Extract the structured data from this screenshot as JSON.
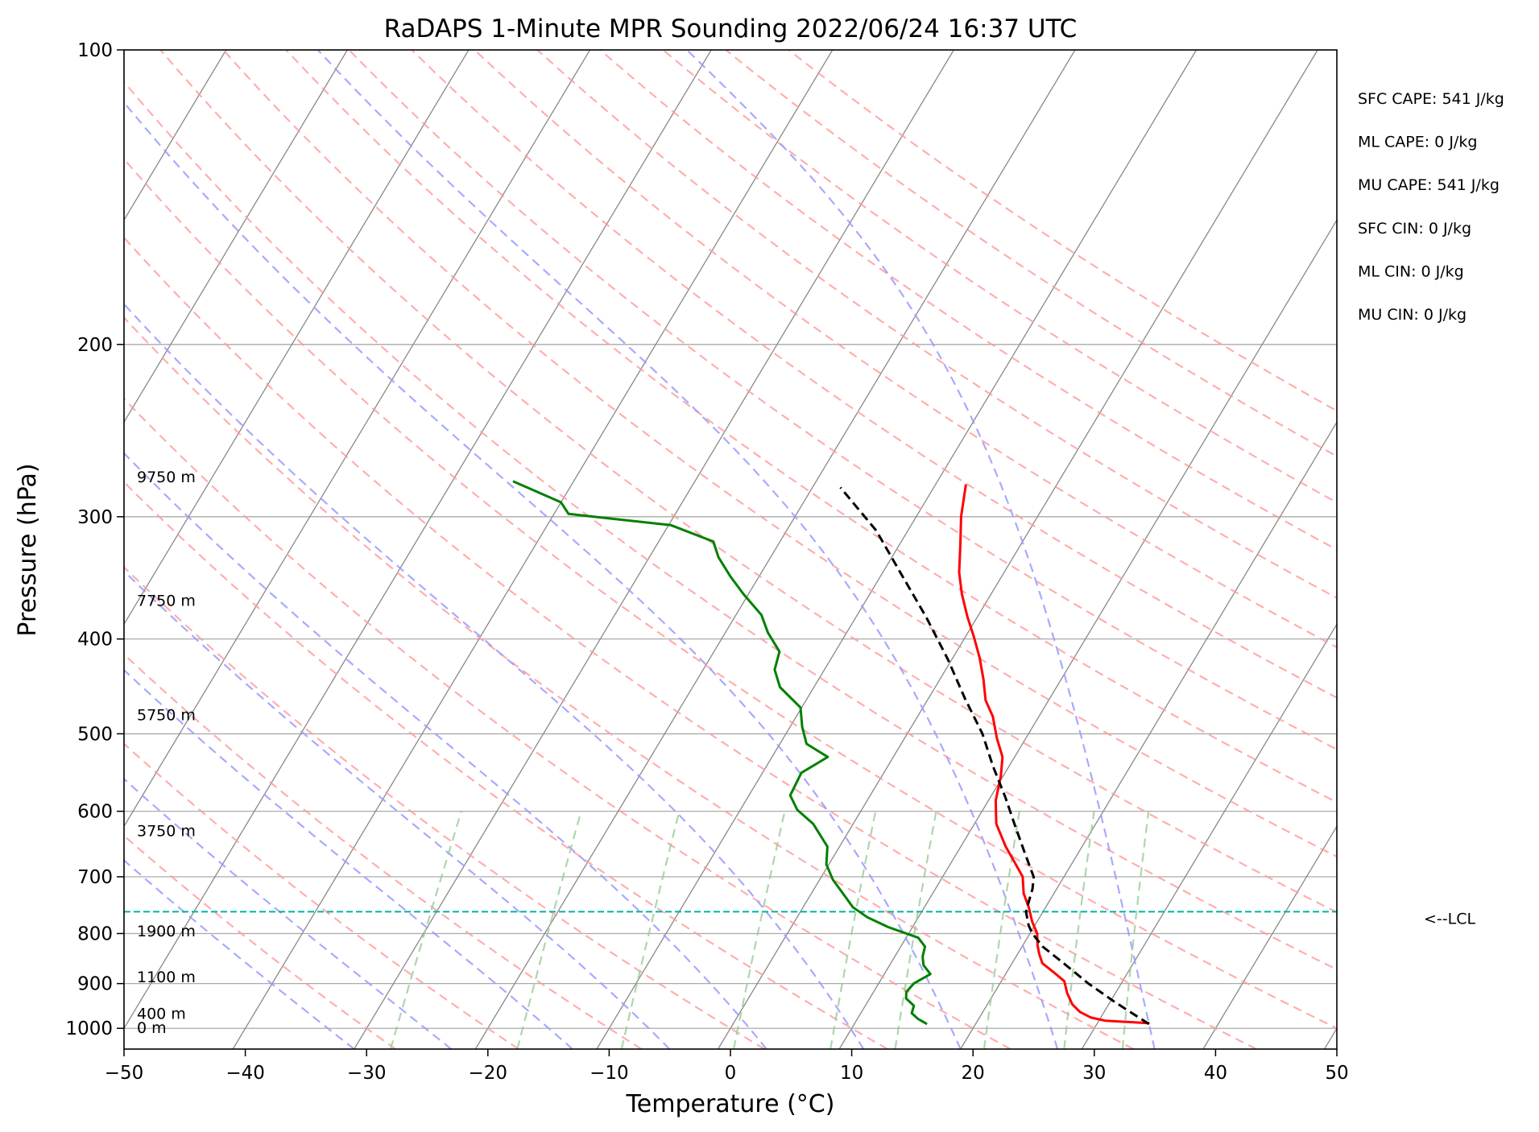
{
  "chart_data": {
    "type": "line",
    "title": "RaDAPS 1-Minute MPR Sounding 2022/06/24 16:37 UTC",
    "xlabel": "Temperature (°C)",
    "ylabel": "Pressure (hPa)",
    "xlim": [
      -50,
      50
    ],
    "ylim": [
      1050,
      100
    ],
    "y_scale": "log",
    "skew": "skew-T log-P",
    "x_ticks": [
      -50,
      -40,
      -30,
      -20,
      -10,
      0,
      10,
      20,
      30,
      40,
      50
    ],
    "y_ticks": [
      100,
      200,
      300,
      400,
      500,
      600,
      700,
      800,
      900,
      1000
    ],
    "grid": true,
    "series": [
      {
        "role": "temperature",
        "color": "#ff0000",
        "points": [
          [
            988,
            34.3
          ],
          [
            982,
            30.5
          ],
          [
            975,
            29.2
          ],
          [
            962,
            28.0
          ],
          [
            945,
            27.0
          ],
          [
            920,
            26.0
          ],
          [
            895,
            25.2
          ],
          [
            878,
            24.0
          ],
          [
            858,
            22.5
          ],
          [
            840,
            21.8
          ],
          [
            822,
            21.2
          ],
          [
            800,
            20.6
          ],
          [
            778,
            19.6
          ],
          [
            752,
            18.6
          ],
          [
            728,
            17.5
          ],
          [
            700,
            16.6
          ],
          [
            678,
            15.3
          ],
          [
            652,
            13.7
          ],
          [
            618,
            11.8
          ],
          [
            585,
            10.6
          ],
          [
            552,
            9.8
          ],
          [
            528,
            9.0
          ],
          [
            505,
            7.6
          ],
          [
            480,
            6.2
          ],
          [
            462,
            4.8
          ],
          [
            440,
            3.6
          ],
          [
            418,
            2.2
          ],
          [
            398,
            0.7
          ],
          [
            380,
            -0.8
          ],
          [
            360,
            -2.4
          ],
          [
            342,
            -3.7
          ],
          [
            320,
            -5.0
          ],
          [
            300,
            -6.3
          ],
          [
            278,
            -7.5
          ]
        ]
      },
      {
        "role": "dewpoint",
        "color": "#008000",
        "points": [
          [
            990,
            16.0
          ],
          [
            978,
            15.0
          ],
          [
            965,
            14.2
          ],
          [
            948,
            14.0
          ],
          [
            932,
            13.0
          ],
          [
            918,
            12.7
          ],
          [
            900,
            12.9
          ],
          [
            880,
            13.8
          ],
          [
            862,
            12.8
          ],
          [
            845,
            12.3
          ],
          [
            825,
            12.0
          ],
          [
            808,
            11.0
          ],
          [
            788,
            8.0
          ],
          [
            770,
            5.8
          ],
          [
            752,
            4.1
          ],
          [
            728,
            2.6
          ],
          [
            705,
            1.1
          ],
          [
            680,
            -0.2
          ],
          [
            652,
            -1.0
          ],
          [
            618,
            -3.3
          ],
          [
            598,
            -5.3
          ],
          [
            578,
            -6.6
          ],
          [
            548,
            -6.8
          ],
          [
            528,
            -5.4
          ],
          [
            512,
            -7.8
          ],
          [
            492,
            -9.0
          ],
          [
            470,
            -10.1
          ],
          [
            448,
            -12.8
          ],
          [
            430,
            -14.1
          ],
          [
            412,
            -14.6
          ],
          [
            394,
            -16.5
          ],
          [
            378,
            -17.9
          ],
          [
            360,
            -20.4
          ],
          [
            345,
            -22.4
          ],
          [
            330,
            -24.3
          ],
          [
            318,
            -25.5
          ],
          [
            306,
            -29.8
          ],
          [
            298,
            -38.8
          ],
          [
            290,
            -40.0
          ],
          [
            276,
            -45.0
          ]
        ]
      },
      {
        "role": "parcel-profile",
        "color": "#000000",
        "points": [
          [
            990,
            34.3
          ],
          [
            940,
            30.4
          ],
          [
            900,
            27.3
          ],
          [
            860,
            24.4
          ],
          [
            825,
            21.7
          ],
          [
            800,
            20.2
          ],
          [
            785,
            19.5
          ],
          [
            760,
            18.6
          ],
          [
            740,
            18.3
          ],
          [
            720,
            18.0
          ],
          [
            700,
            17.5
          ],
          [
            660,
            15.5
          ],
          [
            620,
            13.4
          ],
          [
            580,
            11.2
          ],
          [
            540,
            8.7
          ],
          [
            500,
            6.2
          ],
          [
            460,
            3.0
          ],
          [
            420,
            -0.3
          ],
          [
            380,
            -4.2
          ],
          [
            340,
            -8.8
          ],
          [
            310,
            -12.6
          ],
          [
            280,
            -17.7
          ]
        ]
      }
    ],
    "lcl": {
      "pressure": 760,
      "label": "<--LCL",
      "color": "#00b2a3"
    },
    "height_labels": [
      {
        "pressure": 273,
        "label": "9750 m"
      },
      {
        "pressure": 365,
        "label": "7750 m"
      },
      {
        "pressure": 478,
        "label": "5750 m"
      },
      {
        "pressure": 628,
        "label": "3750 m"
      },
      {
        "pressure": 795,
        "label": "1900 m"
      },
      {
        "pressure": 885,
        "label": "1100 m"
      },
      {
        "pressure": 965,
        "label": "400 m"
      },
      {
        "pressure": 998,
        "label": "0 m"
      }
    ],
    "annotations": [
      "SFC CAPE: 541 J/kg",
      "ML CAPE: 0 J/kg",
      "MU CAPE: 541 J/kg",
      "SFC CIN: 0 J/kg",
      "ML CIN: 0 J/kg",
      "MU CIN: 0 J/kg"
    ],
    "reference_lines": {
      "isotherms": {
        "color": "#888888",
        "from": -160,
        "to": 50,
        "step": 10
      },
      "dry_adiabats": {
        "color": "#ff9a9a",
        "from": -30,
        "to": 170,
        "step": 10
      },
      "moist_adiabats": {
        "color": "#9a9aff",
        "start_temps": [
          -30,
          -22,
          -12,
          -4,
          4,
          12,
          20,
          28,
          36
        ]
      },
      "mixing_ratio": {
        "color": "#99cc99",
        "values": [
          0.4,
          1,
          2,
          4,
          7,
          10,
          16,
          24,
          32
        ],
        "top_pressure": 600
      }
    }
  }
}
